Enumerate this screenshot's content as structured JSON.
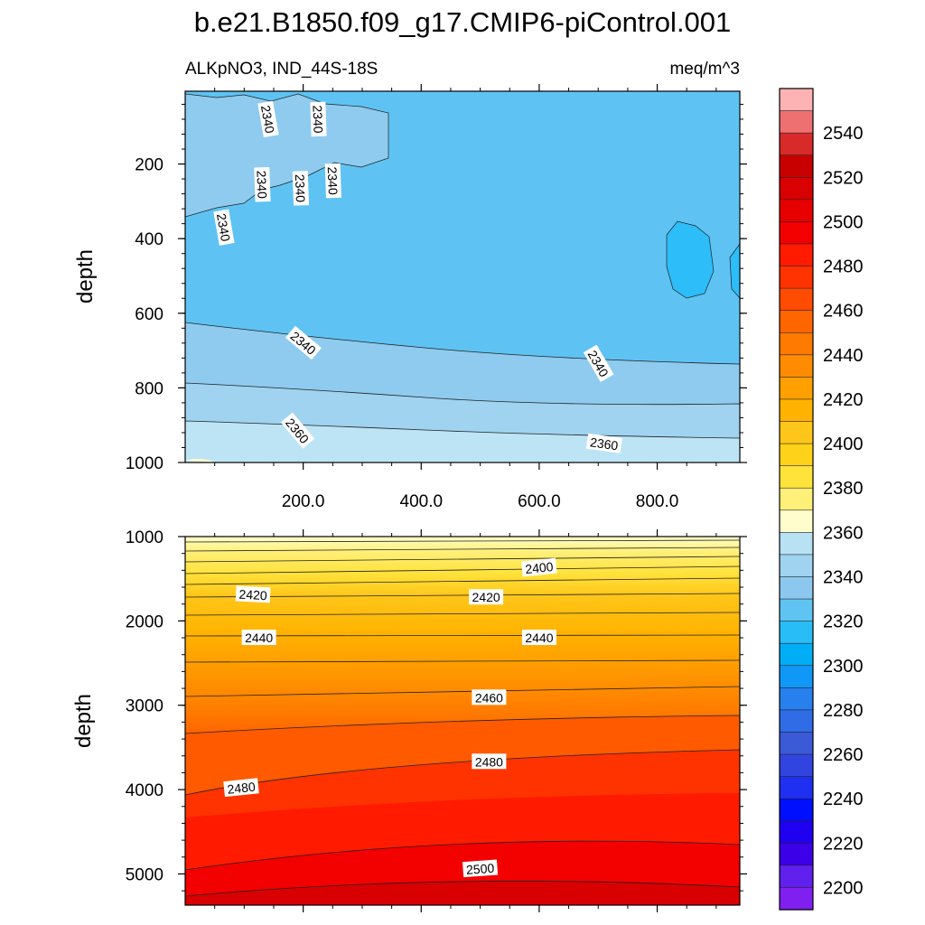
{
  "chart_data": {
    "title": "b.e21.B1850.f09_g17.CMIP6-piControl.001",
    "left_subtitle": "ALKpNO3, IND_44S-18S",
    "right_subtitle": "meq/m^3",
    "type": "heatmap",
    "panels": [
      {
        "name": "upper",
        "ylabel": "depth",
        "yticks": [
          "200",
          "400",
          "600",
          "800",
          "1000"
        ],
        "ytick_values": [
          200,
          400,
          600,
          800,
          1000
        ],
        "ylim": [
          5,
          1000
        ],
        "xticks": [
          "200.0",
          "400.0",
          "600.0",
          "800.0"
        ],
        "xtick_values": [
          200,
          400,
          600,
          800
        ],
        "xlim": [
          0,
          940
        ],
        "contour_labels": [
          {
            "text": "2340",
            "x": 140,
            "depth": 80,
            "rot": 80
          },
          {
            "text": "2340",
            "x": 225,
            "depth": 80,
            "rot": 88
          },
          {
            "text": "2340",
            "x": 130,
            "depth": 255,
            "rot": 88
          },
          {
            "text": "2340",
            "x": 195,
            "depth": 265,
            "rot": 88
          },
          {
            "text": "2340",
            "x": 250,
            "depth": 245,
            "rot": 88
          },
          {
            "text": "2340",
            "x": 65,
            "depth": 370,
            "rot": 80
          },
          {
            "text": "2340",
            "x": 200,
            "depth": 680,
            "rot": 40
          },
          {
            "text": "2340",
            "x": 700,
            "depth": 735,
            "rot": 60
          },
          {
            "text": "2360",
            "x": 190,
            "depth": 915,
            "rot": 50
          },
          {
            "text": "2360",
            "x": 710,
            "depth": 950,
            "rot": 8
          }
        ]
      },
      {
        "name": "lower",
        "ylabel": "depth",
        "yticks": [
          "1000",
          "2000",
          "3000",
          "4000",
          "5000"
        ],
        "ytick_values": [
          1000,
          2000,
          3000,
          4000,
          5000
        ],
        "ylim": [
          1000,
          5370
        ],
        "xlim": [
          0,
          940
        ],
        "contour_labels": [
          {
            "text": "2400",
            "x": 600,
            "depth": 1370,
            "rot": -6
          },
          {
            "text": "2420",
            "x": 115,
            "depth": 1690,
            "rot": 3
          },
          {
            "text": "2420",
            "x": 510,
            "depth": 1720,
            "rot": 0
          },
          {
            "text": "2440",
            "x": 125,
            "depth": 2200,
            "rot": 0
          },
          {
            "text": "2440",
            "x": 600,
            "depth": 2200,
            "rot": 0
          },
          {
            "text": "2460",
            "x": 515,
            "depth": 2910,
            "rot": 0
          },
          {
            "text": "2480",
            "x": 515,
            "depth": 3670,
            "rot": 0
          },
          {
            "text": "2480",
            "x": 95,
            "depth": 3980,
            "rot": -6
          },
          {
            "text": "2500",
            "x": 500,
            "depth": 4940,
            "rot": -4
          }
        ]
      }
    ],
    "colorbar": {
      "labels": [
        "2540",
        "2520",
        "2500",
        "2480",
        "2460",
        "2440",
        "2420",
        "2400",
        "2380",
        "2360",
        "2340",
        "2320",
        "2300",
        "2280",
        "2260",
        "2240",
        "2220",
        "2200"
      ],
      "boundaries": [
        2550,
        2545,
        2540,
        2530,
        2520,
        2510,
        2500,
        2490,
        2480,
        2470,
        2460,
        2450,
        2440,
        2430,
        2420,
        2410,
        2400,
        2390,
        2380,
        2370,
        2360,
        2350,
        2340,
        2330,
        2320,
        2310,
        2300,
        2290,
        2280,
        2270,
        2260,
        2250,
        2240,
        2230,
        2220,
        2210,
        2200,
        2195
      ],
      "colors": [
        "#fdb3b3",
        "#ee7070",
        "#d92a2a",
        "#c80000",
        "#d80000",
        "#e80000",
        "#f30000",
        "#ff1a00",
        "#ff3300",
        "#ff4c00",
        "#ff6600",
        "#ff7a00",
        "#ff8c00",
        "#ffa000",
        "#ffb300",
        "#ffc61a",
        "#ffd21a",
        "#ffe23a",
        "#fff07a",
        "#fffdcc",
        "#b8e2f4",
        "#9fd3f0",
        "#8cc8ee",
        "#60c4f2",
        "#29bdf8",
        "#00aef5",
        "#1098f7",
        "#2880ee",
        "#2f6ce6",
        "#3b5ad8",
        "#3244e0",
        "#2030f0",
        "#0010ff",
        "#2000f0",
        "#3c00e8",
        "#6020ee",
        "#8020f0"
      ]
    },
    "colors": {
      "upper_fill": "#5ec3f3",
      "upper_light": "#8ecbee",
      "upper_lighter": "#bde4f5",
      "upper_dark_patch": "#2dbdf8",
      "lower_top": "#ffffcc"
    }
  }
}
